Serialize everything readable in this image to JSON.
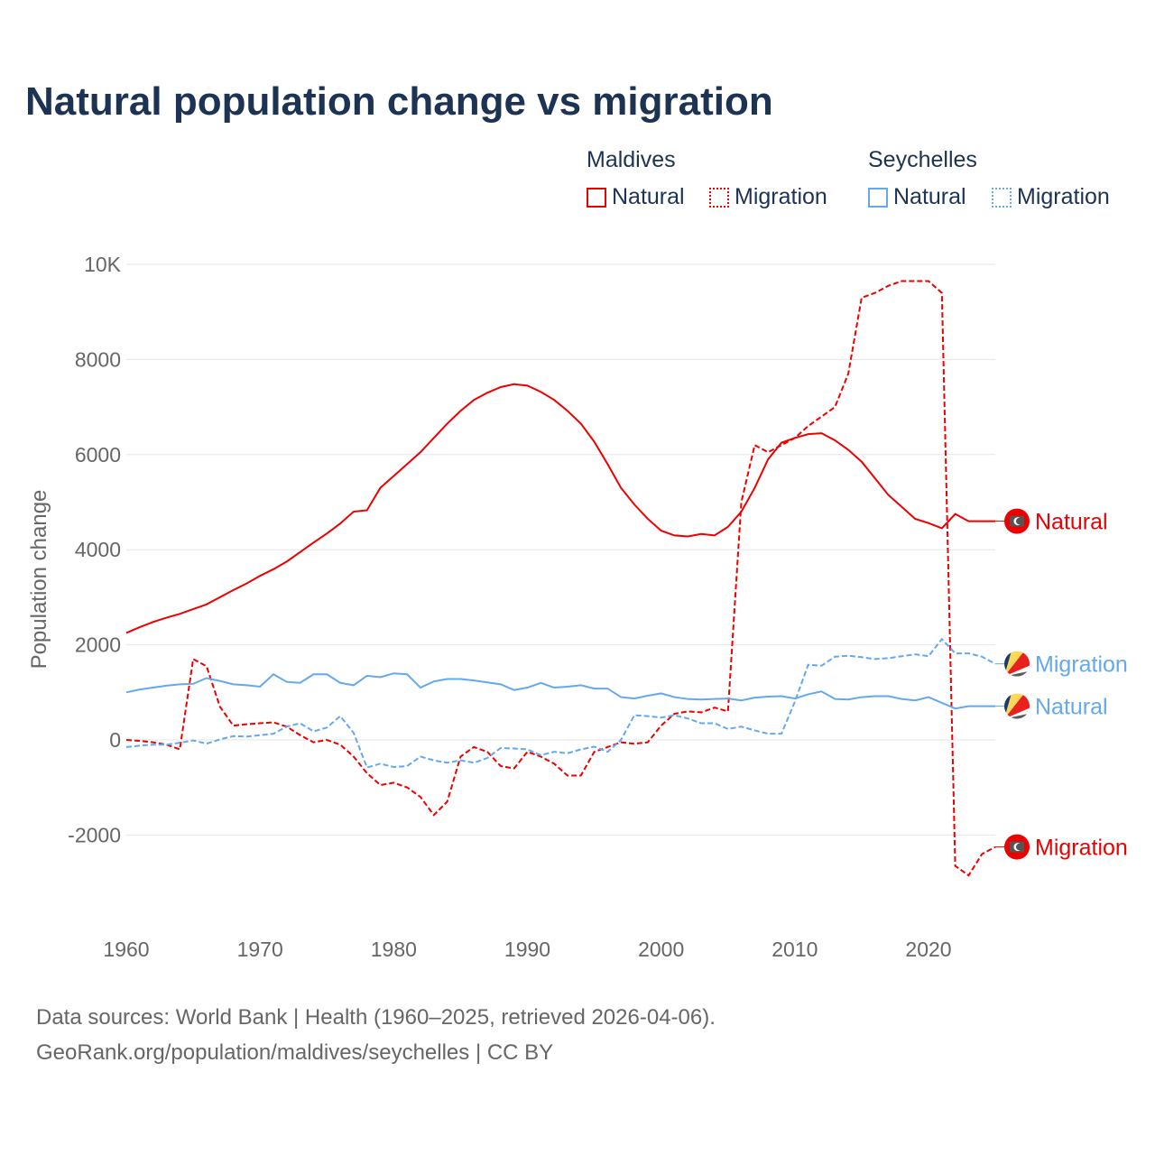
{
  "title": "Natural population change vs migration",
  "legend": {
    "groups": [
      {
        "name": "Maldives",
        "items": [
          {
            "label": "Natural",
            "color": "#ee0000",
            "style": "solid"
          },
          {
            "label": "Migration",
            "color": "#ee0000",
            "style": "dotted"
          }
        ]
      },
      {
        "name": "Seychelles",
        "items": [
          {
            "label": "Natural",
            "color": "#64a8ee",
            "style": "solid"
          },
          {
            "label": "Migration",
            "color": "#64a8ee",
            "style": "dotted"
          }
        ]
      }
    ]
  },
  "footer": {
    "line1": "Data sources: World Bank | Health (1960–2025, retrieved 2026-04-06).",
    "line2": "GeoRank.org/population/maldives/seychelles | CC BY"
  },
  "chart_data": {
    "type": "line",
    "title": "Natural population change vs migration",
    "xlabel": "",
    "ylabel": "Population change",
    "xlim": [
      1960,
      2025
    ],
    "ylim": [
      -3000,
      10000
    ],
    "x_ticks": [
      1960,
      1970,
      1980,
      1990,
      2000,
      2010,
      2020
    ],
    "x_tick_labels": [
      "1960",
      "1970",
      "1980",
      "1990",
      "2000",
      "2010",
      "2020"
    ],
    "y_ticks": [
      -2000,
      0,
      2000,
      4000,
      6000,
      8000,
      10000
    ],
    "y_tick_labels": [
      "-2000",
      "0",
      "2000",
      "4000",
      "6000",
      "8000",
      "10K"
    ],
    "grid": true,
    "x": [
      1960,
      1961,
      1962,
      1963,
      1964,
      1965,
      1966,
      1967,
      1968,
      1969,
      1970,
      1971,
      1972,
      1973,
      1974,
      1975,
      1976,
      1977,
      1978,
      1979,
      1980,
      1981,
      1982,
      1983,
      1984,
      1985,
      1986,
      1987,
      1988,
      1989,
      1990,
      1991,
      1992,
      1993,
      1994,
      1995,
      1996,
      1997,
      1998,
      1999,
      2000,
      2001,
      2002,
      2003,
      2004,
      2005,
      2006,
      2007,
      2008,
      2009,
      2010,
      2011,
      2012,
      2013,
      2014,
      2015,
      2016,
      2017,
      2018,
      2019,
      2020,
      2021,
      2022,
      2023,
      2024,
      2025
    ],
    "series": [
      {
        "name": "Maldives Natural",
        "country": "Maldives",
        "end_label": "Natural",
        "color": "#ee0000",
        "dash": false,
        "values": [
          2250,
          2370,
          2480,
          2570,
          2650,
          2750,
          2850,
          3000,
          3150,
          3290,
          3450,
          3590,
          3750,
          3950,
          4150,
          4340,
          4550,
          4800,
          4830,
          5300,
          5550,
          5800,
          6050,
          6350,
          6650,
          6920,
          7150,
          7300,
          7420,
          7480,
          7450,
          7320,
          7150,
          6920,
          6650,
          6270,
          5800,
          5300,
          4950,
          4650,
          4400,
          4300,
          4280,
          4330,
          4300,
          4480,
          4800,
          5300,
          5900,
          6250,
          6350,
          6430,
          6450,
          6300,
          6100,
          5850,
          5500,
          5150,
          4900,
          4650,
          4560,
          4450,
          4750,
          4600,
          4600,
          4600
        ]
      },
      {
        "name": "Maldives Migration",
        "country": "Maldives",
        "end_label": "Migration",
        "color": "#ee0000",
        "dash": true,
        "values": [
          0,
          -20,
          -50,
          -100,
          -200,
          1700,
          1550,
          700,
          300,
          330,
          350,
          370,
          280,
          100,
          -50,
          0,
          -100,
          -350,
          -700,
          -950,
          -900,
          -1000,
          -1200,
          -1580,
          -1300,
          -350,
          -150,
          -250,
          -550,
          -600,
          -250,
          -350,
          -500,
          -750,
          -750,
          -250,
          -150,
          -50,
          -80,
          -50,
          300,
          550,
          600,
          580,
          680,
          600,
          5000,
          6200,
          6050,
          6200,
          6350,
          6600,
          6800,
          7000,
          7700,
          9300,
          9400,
          9550,
          9650,
          9650,
          9650,
          9400,
          -2650,
          -2850,
          -2400,
          -2250
        ]
      },
      {
        "name": "Seychelles Natural",
        "country": "Seychelles",
        "end_label": "Natural",
        "color": "#64a8ee",
        "dash": false,
        "values": [
          1000,
          1060,
          1100,
          1140,
          1170,
          1180,
          1300,
          1240,
          1170,
          1150,
          1120,
          1380,
          1220,
          1200,
          1380,
          1380,
          1200,
          1150,
          1350,
          1320,
          1400,
          1380,
          1100,
          1230,
          1280,
          1280,
          1250,
          1210,
          1170,
          1050,
          1100,
          1200,
          1100,
          1120,
          1150,
          1080,
          1080,
          900,
          870,
          930,
          980,
          900,
          860,
          850,
          860,
          870,
          830,
          890,
          910,
          920,
          870,
          960,
          1020,
          860,
          850,
          900,
          920,
          920,
          860,
          830,
          900,
          780,
          660,
          710,
          710,
          710
        ]
      },
      {
        "name": "Seychelles Migration",
        "country": "Seychelles",
        "end_label": "Migration",
        "color": "#64a8ee",
        "dash": true,
        "values": [
          -150,
          -120,
          -100,
          -100,
          -60,
          -10,
          -80,
          10,
          80,
          70,
          100,
          130,
          280,
          350,
          180,
          260,
          500,
          150,
          -580,
          -500,
          -570,
          -550,
          -350,
          -430,
          -480,
          -430,
          -480,
          -380,
          -170,
          -180,
          -200,
          -320,
          -250,
          -280,
          -200,
          -140,
          -250,
          0,
          520,
          500,
          470,
          520,
          450,
          350,
          350,
          230,
          280,
          200,
          130,
          130,
          800,
          1580,
          1560,
          1750,
          1770,
          1740,
          1700,
          1720,
          1760,
          1800,
          1760,
          2120,
          1820,
          1820,
          1750,
          1600
        ]
      }
    ]
  }
}
